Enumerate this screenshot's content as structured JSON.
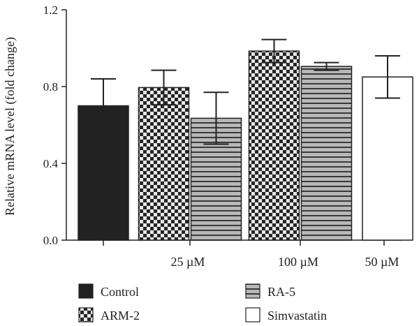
{
  "chart_data": {
    "type": "bar",
    "ylabel": "Relative mRNA level (fold change)",
    "ylim": [
      0,
      1.2
    ],
    "yticks": [
      "0.0",
      "0.4",
      "0.8",
      "1.2"
    ],
    "groups": [
      {
        "label": ""
      },
      {
        "label": "25 µM"
      },
      {
        "label": "100 µM"
      },
      {
        "label": "50 µM"
      }
    ],
    "bars": [
      {
        "series": "Control",
        "group": 0,
        "value": 0.7,
        "error": 0.14
      },
      {
        "series": "ARM-2",
        "group": 1,
        "value": 0.795,
        "error": 0.09
      },
      {
        "series": "RA-5",
        "group": 1,
        "value": 0.635,
        "error": 0.135
      },
      {
        "series": "ARM-2",
        "group": 2,
        "value": 0.985,
        "error": 0.06
      },
      {
        "series": "RA-5",
        "group": 2,
        "value": 0.905,
        "error": 0.02
      },
      {
        "series": "Simvastatin",
        "group": 3,
        "value": 0.85,
        "error": 0.11
      }
    ],
    "series": [
      {
        "name": "Control",
        "fill": "solid-black",
        "color": "#222222"
      },
      {
        "name": "ARM-2",
        "fill": "checkerboard",
        "color": "#222222"
      },
      {
        "name": "RA-5",
        "fill": "horizontal-stripes",
        "color": "#444444"
      },
      {
        "name": "Simvastatin",
        "fill": "white",
        "color": "#ffffff"
      }
    ],
    "legend_position": "bottom"
  }
}
